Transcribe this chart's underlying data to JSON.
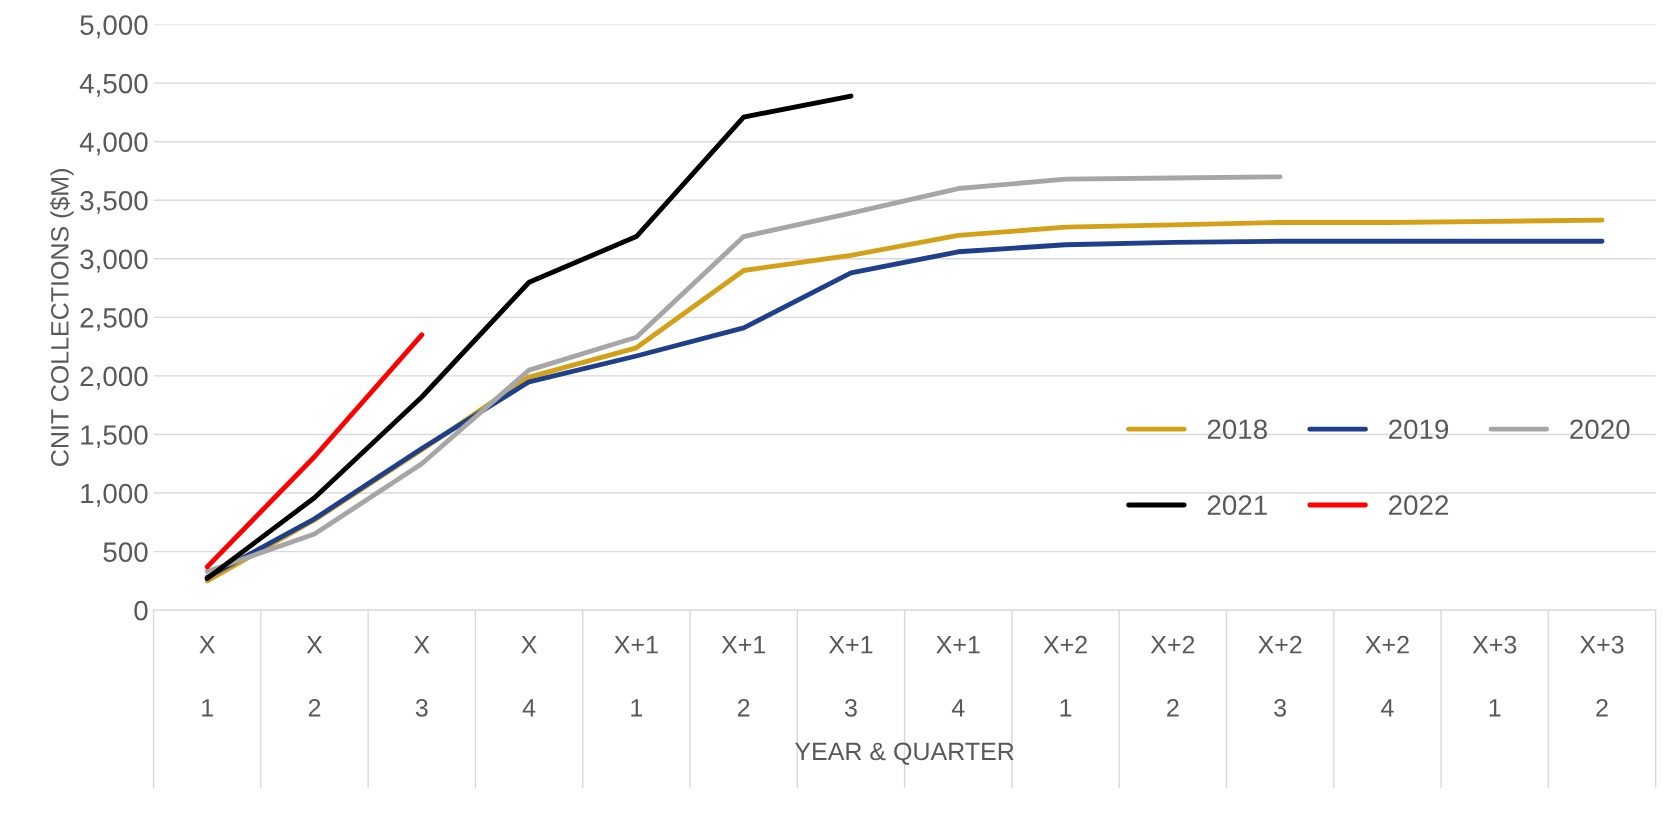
{
  "chart_data": {
    "type": "line",
    "xlabel": "YEAR & QUARTER",
    "ylabel": "CNIT COLLECTIONS ($M)",
    "categories": [
      "X\n1",
      "X\n2",
      "X\n3",
      "X\n4",
      "X+1\n1",
      "X+1\n2",
      "X+1\n3",
      "X+1\n4",
      "X+2\n1",
      "X+2\n2",
      "X+2\n3",
      "X+2\n4",
      "X+3\n1",
      "X+3\n2"
    ],
    "series": [
      {
        "name": "2018",
        "color": "#d4a017",
        "values": [
          250,
          770,
          1370,
          1990,
          2240,
          2900,
          3030,
          3200,
          3270,
          3290,
          3310,
          3310,
          3320,
          3330
        ]
      },
      {
        "name": "2019",
        "color": "#1f3f8a",
        "values": [
          280,
          780,
          1380,
          1950,
          2170,
          2410,
          2880,
          3060,
          3120,
          3140,
          3150,
          3150,
          3150,
          3150
        ]
      },
      {
        "name": "2020",
        "color": "#a6a6a6",
        "values": [
          330,
          650,
          1250,
          2050,
          2330,
          3190,
          3390,
          3600,
          3680,
          3690,
          3700,
          null,
          null,
          null
        ]
      },
      {
        "name": "2021",
        "color": "#000000",
        "values": [
          270,
          960,
          1820,
          2800,
          3190,
          4210,
          4390,
          null,
          null,
          null,
          null,
          null,
          null,
          null
        ]
      },
      {
        "name": "2022",
        "color": "#ff0000",
        "values": [
          370,
          1310,
          2350,
          null,
          null,
          null,
          null,
          null,
          null,
          null,
          null,
          null,
          null,
          null
        ]
      }
    ],
    "ylim": [
      0,
      5000
    ],
    "yticks": [
      0,
      {
        "value": 500,
        "label": "500"
      },
      {
        "value": 1000,
        "label": "1,000"
      },
      {
        "value": 1500,
        "label": "1,500"
      },
      {
        "value": 2000,
        "label": "2,000"
      },
      {
        "value": 2500,
        "label": "2,500"
      },
      {
        "value": 3000,
        "label": "3,000"
      },
      {
        "value": 3500,
        "label": "3,500"
      },
      {
        "value": 4000,
        "label": "4,000"
      },
      {
        "value": 4500,
        "label": "4,500"
      },
      {
        "value": 5000,
        "label": "5,000"
      }
    ],
    "grid": "y",
    "legend": "right"
  }
}
